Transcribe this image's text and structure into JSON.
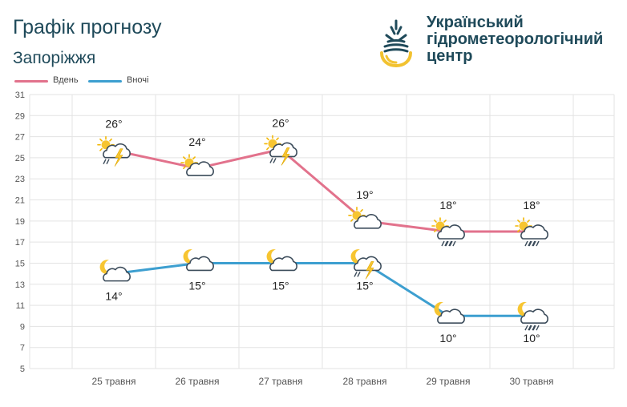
{
  "header": {
    "title": "Графік прогнозу",
    "city": "Запоріжжя"
  },
  "brand": {
    "line1": "Український",
    "line2": "гідрометеорологічний",
    "line3": "центр"
  },
  "colors": {
    "day": "#e2728c",
    "night": "#3d9fd0",
    "grid": "#e3e3e3",
    "axis_text": "#555555"
  },
  "chart_data": {
    "type": "line",
    "categories": [
      "25 травня",
      "26 травня",
      "27 травня",
      "28 травня",
      "29 травня",
      "30 травня"
    ],
    "yticks": [
      5,
      7,
      9,
      11,
      13,
      15,
      17,
      19,
      21,
      23,
      25,
      27,
      29,
      31
    ],
    "ylim": [
      5,
      31
    ],
    "grid": true,
    "legend_position": "top-left",
    "series": [
      {
        "name": "Вдень",
        "key": "day",
        "values": [
          26,
          24,
          26,
          19,
          18,
          18
        ],
        "point_values": [
          25.7,
          24.0,
          25.8,
          19.0,
          18.0,
          18.0
        ],
        "labels": [
          "26°",
          "24°",
          "26°",
          "19°",
          "18°",
          "18°"
        ],
        "icons": [
          "sun-cloud-thunder-rain-icon",
          "sun-cloud-icon",
          "sun-cloud-thunder-rain-icon",
          "sun-cloud-icon",
          "sun-cloud-rain-icon",
          "sun-cloud-rain-icon"
        ]
      },
      {
        "name": "Вночі",
        "key": "night",
        "values": [
          14,
          15,
          15,
          15,
          10,
          10
        ],
        "point_values": [
          14.0,
          15.0,
          15.0,
          15.0,
          10.0,
          10.0
        ],
        "labels": [
          "14°",
          "15°",
          "15°",
          "15°",
          "10°",
          "10°"
        ],
        "icons": [
          "moon-cloud-icon",
          "moon-cloud-icon",
          "moon-cloud-icon",
          "moon-cloud-thunder-rain-icon",
          "moon-cloud-icon",
          "moon-cloud-rain-icon"
        ]
      }
    ]
  }
}
